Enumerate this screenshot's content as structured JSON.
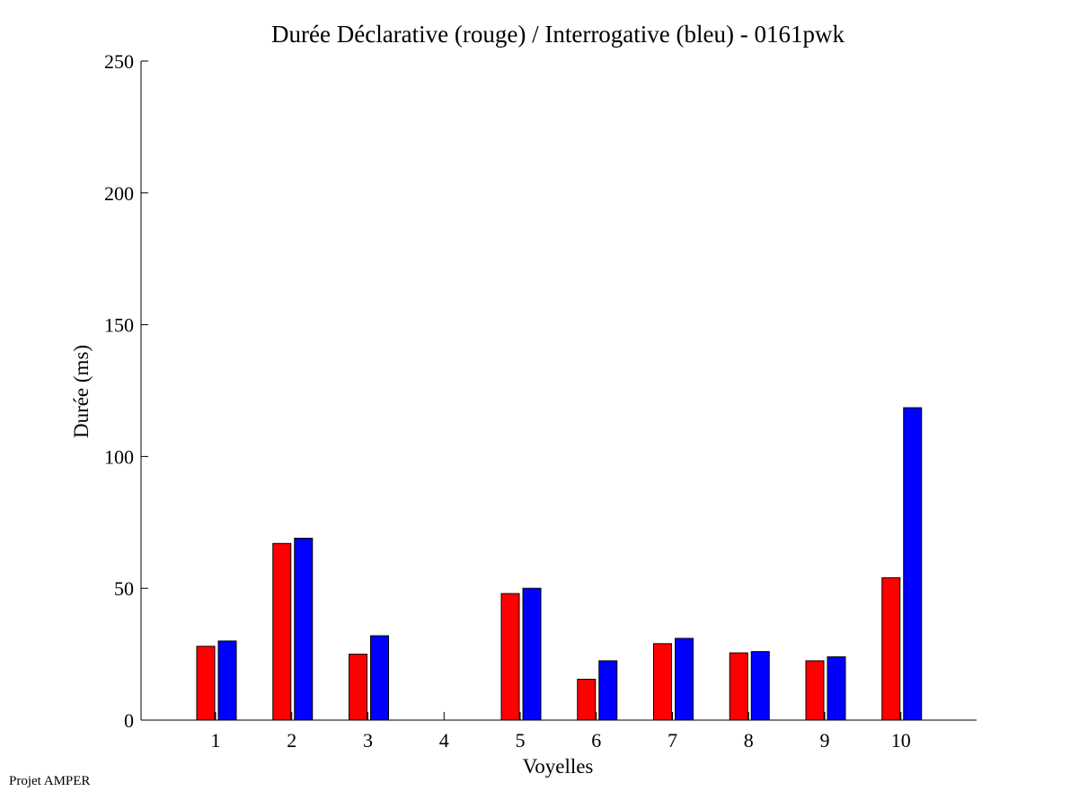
{
  "footer": "Projet AMPER",
  "colors": {
    "declarative": "#ff0000",
    "interrogative": "#0000ff",
    "axis": "#000000"
  },
  "chart_data": {
    "type": "bar",
    "title": "Durée Déclarative (rouge) / Interrogative (bleu) - 0161pwk",
    "xlabel": "Voyelles",
    "ylabel": "Durée (ms)",
    "ylim": [
      0,
      250
    ],
    "yticks": [
      0,
      50,
      100,
      150,
      200,
      250
    ],
    "categories": [
      "1",
      "2",
      "3",
      "4",
      "5",
      "6",
      "7",
      "8",
      "9",
      "10"
    ],
    "series": [
      {
        "values": [
          28,
          67,
          25,
          0,
          48,
          15.5,
          29,
          25.5,
          22.5,
          54
        ]
      },
      {
        "values": [
          30,
          69,
          32,
          0,
          50,
          22.5,
          31,
          26,
          24,
          118.5
        ]
      }
    ],
    "grid": false,
    "legend": "none"
  }
}
